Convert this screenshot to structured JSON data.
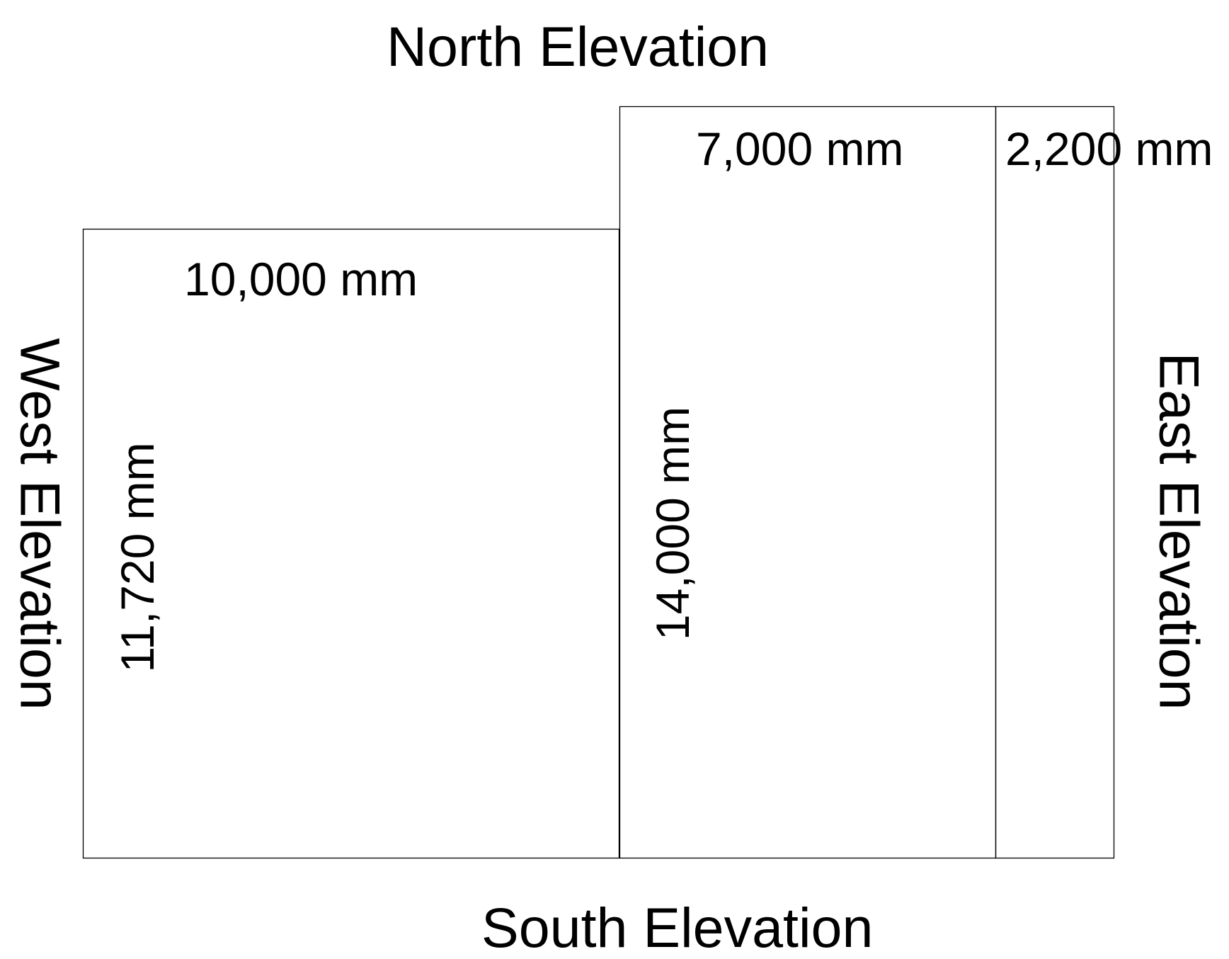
{
  "elevations": {
    "north": "North Elevation",
    "south": "South Elevation",
    "west": "West Elevation",
    "east": "East Elevation"
  },
  "dimensions": {
    "west_block_width": "10,000 mm",
    "west_block_depth": "11,720 mm",
    "middle_block_width": "7,000 mm",
    "middle_block_depth": "14,000 mm",
    "east_block_width": "2,200 mm"
  },
  "colors": {
    "outline": "#000000",
    "background": "#ffffff"
  }
}
